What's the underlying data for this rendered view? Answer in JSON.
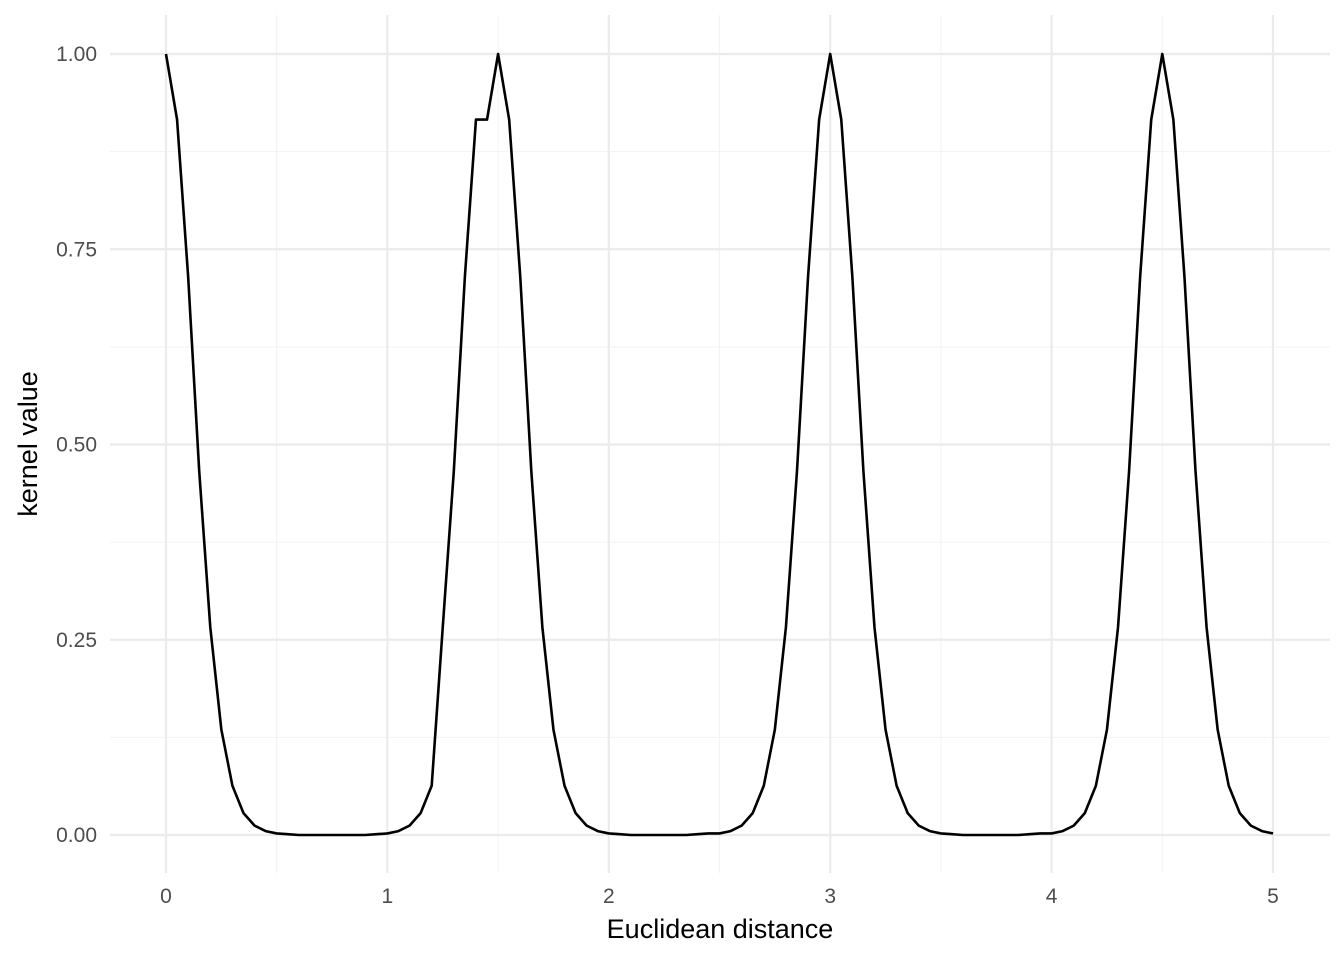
{
  "chart_data": {
    "type": "line",
    "title": "",
    "xlabel": "Euclidean distance",
    "ylabel": "kernel value",
    "xlim": [
      0,
      5
    ],
    "ylim": [
      0,
      1
    ],
    "x_ticks": [
      0,
      1,
      2,
      3,
      4,
      5
    ],
    "x_tick_labels": [
      "0",
      "1",
      "2",
      "3",
      "4",
      "5"
    ],
    "y_ticks": [
      0,
      0.25,
      0.5,
      0.75,
      1
    ],
    "y_tick_labels": [
      "0.00",
      "0.25",
      "0.50",
      "0.75",
      "1.00"
    ],
    "grid": true,
    "legend": "none",
    "line_color": "#000000",
    "series": [
      {
        "x": [
          0,
          0.05,
          0.1,
          0.15,
          0.2,
          0.25,
          0.3,
          0.35,
          0.4,
          0.45,
          0.5,
          0.55,
          0.6,
          0.65,
          0.7,
          0.75,
          0.8,
          0.85,
          0.9,
          0.95,
          1,
          1.05,
          1.1,
          1.15,
          1.2,
          1.25,
          1.3,
          1.35,
          1.4,
          1.45,
          1.5,
          1.55,
          1.6,
          1.65,
          1.7,
          1.75,
          1.8,
          1.85,
          1.9,
          1.95,
          2,
          2.05,
          2.1,
          2.15,
          2.2,
          2.25,
          2.3,
          2.35,
          2.4,
          2.45,
          2.5,
          2.55,
          2.6,
          2.65,
          2.7,
          2.75,
          2.8,
          2.85,
          2.9,
          2.95,
          3,
          3.05,
          3.1,
          3.15,
          3.2,
          3.25,
          3.3,
          3.35,
          3.4,
          3.45,
          3.5,
          3.55,
          3.6,
          3.65,
          3.7,
          3.75,
          3.8,
          3.85,
          3.9,
          3.95,
          4,
          4.05,
          4.1,
          4.15,
          4.2,
          4.25,
          4.3,
          4.35,
          4.4,
          4.45,
          4.5,
          4.55,
          4.6,
          4.65,
          4.7,
          4.75,
          4.8,
          4.85,
          4.9,
          4.95,
          5
        ],
        "y": [
          1,
          0.916,
          0.715,
          0.466,
          0.266,
          0.135,
          0.063,
          0.028,
          0.012,
          0.005,
          0.002,
          0.001,
          0,
          0,
          0,
          0,
          0,
          0,
          0,
          0.001,
          0.002,
          0.005,
          0.012,
          0.028,
          0.063,
          0.266,
          0.466,
          0.715,
          0.916,
          0.916,
          1,
          0.916,
          0.715,
          0.466,
          0.266,
          0.135,
          0.063,
          0.028,
          0.012,
          0.005,
          0.002,
          0.001,
          0,
          0,
          0,
          0,
          0,
          0,
          0.001,
          0.002,
          0.002,
          0.005,
          0.012,
          0.028,
          0.063,
          0.135,
          0.266,
          0.466,
          0.715,
          0.916,
          1,
          0.916,
          0.715,
          0.466,
          0.266,
          0.135,
          0.063,
          0.028,
          0.012,
          0.005,
          0.002,
          0.001,
          0,
          0,
          0,
          0,
          0,
          0,
          0.001,
          0.002,
          0.002,
          0.005,
          0.012,
          0.028,
          0.063,
          0.135,
          0.266,
          0.466,
          0.715,
          0.916,
          1,
          0.916,
          0.715,
          0.466,
          0.266,
          0.135,
          0.063,
          0.028,
          0.012,
          0.005,
          0.002
        ]
      }
    ]
  }
}
